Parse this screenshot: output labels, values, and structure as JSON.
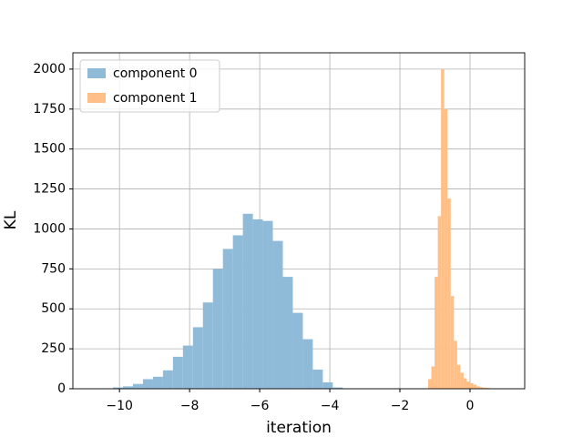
{
  "chart_data": {
    "type": "histogram",
    "xlabel": "iteration",
    "ylabel": "KL",
    "xlim": [
      -11.33,
      1.56
    ],
    "ylim": [
      0,
      2102
    ],
    "xticks": [
      {
        "value": -10,
        "label": "−10"
      },
      {
        "value": -8,
        "label": "−8"
      },
      {
        "value": -6,
        "label": "−6"
      },
      {
        "value": -4,
        "label": "−4"
      },
      {
        "value": -2,
        "label": "−2"
      },
      0
    ],
    "yticks": [
      0,
      250,
      500,
      750,
      1000,
      1250,
      1500,
      1750,
      2000
    ],
    "grid": true,
    "legend": "upper left",
    "series": [
      {
        "name": "component 0",
        "color": "#8fbbd9",
        "bins": [
          -10.47,
          -10.185,
          -9.9,
          -9.615,
          -9.33,
          -9.045,
          -8.76,
          -8.475,
          -8.19,
          -7.905,
          -7.62,
          -7.335,
          -7.05,
          -6.765,
          -6.48,
          -6.195,
          -5.91,
          -5.625,
          -5.34,
          -5.055,
          -4.77,
          -4.485,
          -4.2,
          -3.915,
          -3.63
        ],
        "values": [
          2,
          8,
          15,
          30,
          60,
          75,
          115,
          200,
          270,
          385,
          540,
          750,
          875,
          960,
          1095,
          1060,
          1050,
          925,
          700,
          475,
          310,
          120,
          40,
          8
        ]
      },
      {
        "name": "component 1",
        "color": "#ffbf86",
        "bins": [
          -1.195,
          -1.103,
          -1.011,
          -0.919,
          -0.827,
          -0.735,
          -0.643,
          -0.551,
          -0.459,
          -0.367,
          -0.275,
          -0.183,
          -0.091,
          0.001,
          0.093,
          0.185,
          0.277,
          0.369,
          0.461,
          0.553,
          0.645,
          0.737,
          0.829,
          0.921,
          1.013
        ],
        "values": [
          60,
          140,
          700,
          1080,
          2000,
          1750,
          1190,
          580,
          300,
          150,
          100,
          65,
          45,
          35,
          25,
          15,
          10,
          7,
          5,
          3,
          2,
          1,
          0,
          1
        ]
      }
    ]
  }
}
